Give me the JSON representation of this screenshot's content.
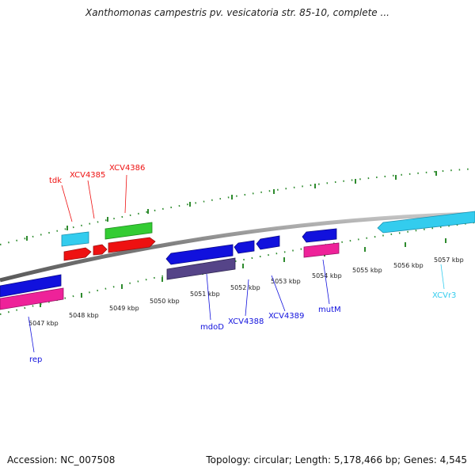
{
  "title": "Xanthomonas campestris pv. vesicatoria str. 85-10, complete ...",
  "accession": "Accession: NC_007508",
  "summary": "Topology: circular; Length: 5,178,466 bp; Genes: 4,545",
  "scale_labels": [
    "5047 kbp",
    "5048 kbp",
    "5049 kbp",
    "5050 kbp",
    "5051 kbp",
    "5052 kbp",
    "5053 kbp",
    "5054 kbp",
    "5055 kbp",
    "5056 kbp",
    "5057 kbp"
  ],
  "gene_labels": {
    "tdk": "tdk",
    "xcv4385": "XCV4385",
    "xcv4386": "XCV4386",
    "rep": "rep",
    "mdoD": "mdoD",
    "xcv4388": "XCV4388",
    "xcv4389": "XCV4389",
    "mutM": "mutM",
    "xcvr3": "XCVr3"
  },
  "colors": {
    "backbone": "#8a8a8a",
    "ticks": "#2e8b2e",
    "red": "#ee1111",
    "blue": "#1111dd",
    "pink": "#ee2299",
    "green": "#33cc33",
    "cyan": "#33ccee",
    "purple": "#554488"
  }
}
